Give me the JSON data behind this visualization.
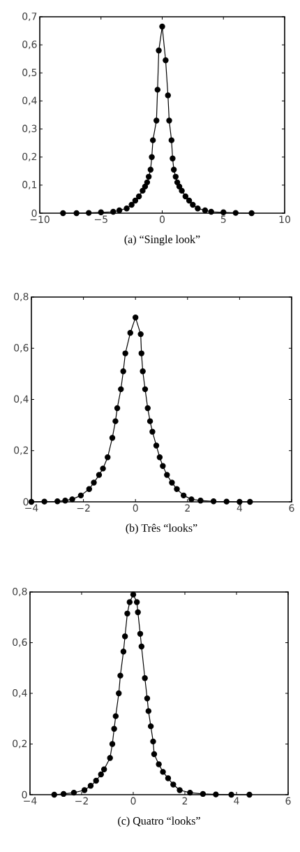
{
  "chart_data": [
    {
      "type": "line",
      "title": "(a) “Single look”",
      "color": "#000000",
      "marker": "circle",
      "line_style": "solid",
      "x": [
        -8.1,
        -7,
        -6,
        -5,
        -4,
        -3.5,
        -2.9,
        -2.5,
        -2.2,
        -1.9,
        -1.6,
        -1.4,
        -1.23,
        -1.1,
        -0.95,
        -0.85,
        -0.76,
        -0.47,
        -0.38,
        -0.28,
        0,
        0.28,
        0.47,
        0.57,
        0.76,
        0.85,
        0.95,
        1.1,
        1.23,
        1.4,
        1.6,
        1.9,
        2.2,
        2.5,
        2.9,
        3.5,
        4,
        5,
        6,
        7.3
      ],
      "values": [
        0,
        0,
        0.001,
        0.003,
        0.005,
        0.01,
        0.017,
        0.03,
        0.045,
        0.06,
        0.08,
        0.095,
        0.11,
        0.13,
        0.155,
        0.2,
        0.26,
        0.33,
        0.44,
        0.58,
        0.665,
        0.545,
        0.42,
        0.33,
        0.26,
        0.195,
        0.155,
        0.13,
        0.11,
        0.095,
        0.08,
        0.06,
        0.045,
        0.03,
        0.017,
        0.01,
        0.005,
        0.003,
        0.001,
        0
      ],
      "xlim": [
        -10,
        10
      ],
      "ylim": [
        0,
        0.7
      ],
      "xticks": [
        {
          "value": -10,
          "label": "−10"
        },
        {
          "value": -5,
          "label": "−5"
        },
        0,
        5,
        10
      ],
      "yticks": [
        0,
        {
          "value": 0.1,
          "label": "0,1"
        },
        {
          "value": 0.2,
          "label": "0,2"
        },
        {
          "value": 0.3,
          "label": "0,3"
        },
        {
          "value": 0.4,
          "label": "0,4"
        },
        {
          "value": 0.5,
          "label": "0,5"
        },
        {
          "value": 0.6,
          "label": "0,6"
        },
        {
          "value": 0.7,
          "label": "0,7"
        }
      ]
    },
    {
      "type": "line",
      "title": "(b) Três “looks”",
      "color": "#000000",
      "marker": "circle",
      "line_style": "solid",
      "x": [
        -4,
        -3.5,
        -3,
        -2.7,
        -2.43,
        -2.1,
        -1.78,
        -1.6,
        -1.4,
        -1.25,
        -1.07,
        -0.89,
        -0.77,
        -0.7,
        -0.56,
        -0.47,
        -0.39,
        -0.2,
        0,
        0.2,
        0.23,
        0.28,
        0.37,
        0.47,
        0.56,
        0.65,
        0.8,
        0.93,
        1.05,
        1.21,
        1.4,
        1.59,
        1.85,
        2.15,
        2.5,
        3,
        3.5,
        4,
        4.4
      ],
      "values": [
        0,
        0.001,
        0.002,
        0.005,
        0.01,
        0.025,
        0.05,
        0.075,
        0.105,
        0.13,
        0.174,
        0.25,
        0.315,
        0.366,
        0.44,
        0.51,
        0.58,
        0.66,
        0.72,
        0.655,
        0.58,
        0.51,
        0.44,
        0.366,
        0.315,
        0.274,
        0.22,
        0.174,
        0.14,
        0.105,
        0.075,
        0.05,
        0.025,
        0.01,
        0.005,
        0.002,
        0.001,
        0,
        0
      ],
      "xlim": [
        -4,
        6
      ],
      "ylim": [
        0,
        0.8
      ],
      "xticks": [
        {
          "value": -4,
          "label": "−4"
        },
        {
          "value": -2,
          "label": "−2"
        },
        0,
        2,
        4,
        6
      ],
      "yticks": [
        0,
        {
          "value": 0.2,
          "label": "0,2"
        },
        {
          "value": 0.4,
          "label": "0,4"
        },
        {
          "value": 0.6,
          "label": "0,6"
        },
        {
          "value": 0.8,
          "label": "0,8"
        }
      ]
    },
    {
      "type": "line",
      "title": "(c) Quatro “looks”",
      "color": "#000000",
      "marker": "circle",
      "line_style": "solid",
      "x": [
        -3.06,
        -2.7,
        -2.3,
        -1.89,
        -1.65,
        -1.44,
        -1.25,
        -1.13,
        -0.9,
        -0.81,
        -0.74,
        -0.68,
        -0.56,
        -0.5,
        -0.38,
        -0.32,
        -0.23,
        -0.14,
        0,
        0.14,
        0.18,
        0.27,
        0.32,
        0.45,
        0.54,
        0.59,
        0.68,
        0.77,
        0.81,
        0.99,
        1.15,
        1.35,
        1.55,
        1.8,
        2.2,
        2.7,
        3.2,
        3.8,
        4.5
      ],
      "values": [
        0,
        0.003,
        0.008,
        0.018,
        0.035,
        0.055,
        0.08,
        0.1,
        0.145,
        0.2,
        0.26,
        0.31,
        0.4,
        0.47,
        0.565,
        0.625,
        0.715,
        0.76,
        0.79,
        0.76,
        0.72,
        0.635,
        0.585,
        0.46,
        0.38,
        0.33,
        0.27,
        0.21,
        0.16,
        0.12,
        0.09,
        0.065,
        0.04,
        0.018,
        0.008,
        0.003,
        0.001,
        0,
        0
      ],
      "xlim": [
        -4,
        6
      ],
      "ylim": [
        0,
        0.8
      ],
      "xticks": [
        {
          "value": -4,
          "label": "−4"
        },
        {
          "value": -2,
          "label": "−2"
        },
        0,
        2,
        4,
        6
      ],
      "yticks": [
        0,
        {
          "value": 0.2,
          "label": "0,2"
        },
        {
          "value": 0.4,
          "label": "0,4"
        },
        {
          "value": 0.6,
          "label": "0,6"
        },
        {
          "value": 0.8,
          "label": "0,8"
        }
      ]
    }
  ]
}
